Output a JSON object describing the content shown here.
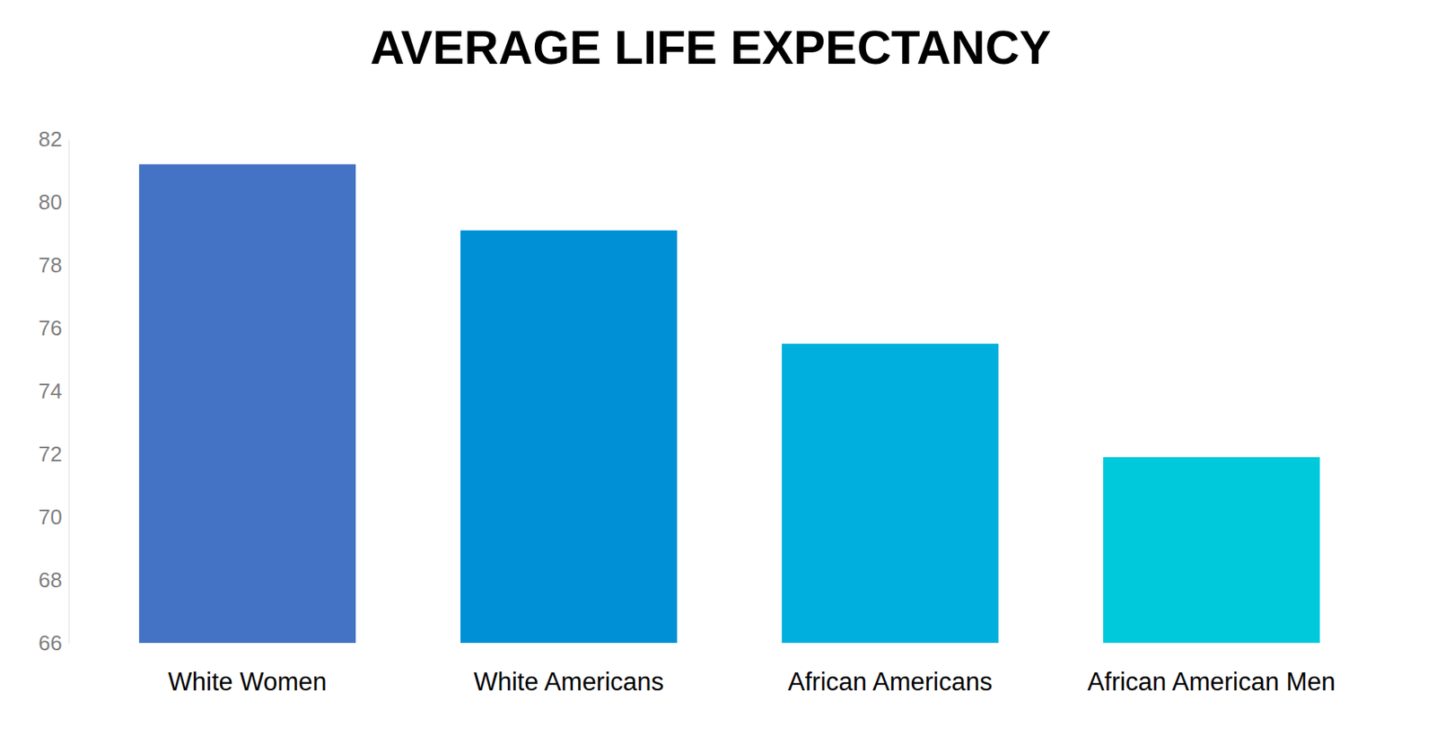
{
  "chart_data": {
    "type": "bar",
    "title": "AVERAGE LIFE EXPECTANCY",
    "categories": [
      "White Women",
      "White Americans",
      "African Americans",
      "African American Men"
    ],
    "values": [
      81.2,
      79.1,
      75.5,
      71.9
    ],
    "colors": [
      "#4472c4",
      "#0090d6",
      "#00afdd",
      "#00c9dc"
    ],
    "ylim": [
      66,
      82
    ],
    "yticks": [
      66,
      68,
      70,
      72,
      74,
      76,
      78,
      80,
      82
    ],
    "grid": false
  }
}
